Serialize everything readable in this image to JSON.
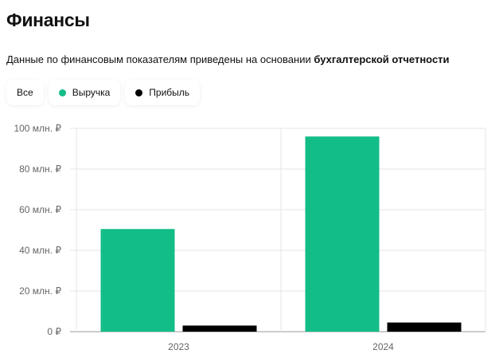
{
  "header": {
    "title": "Финансы",
    "subtitle_prefix": "Данные по финансовым показателям приведены на основании ",
    "subtitle_bold": "бухгалтерской отчетности"
  },
  "filters": [
    {
      "label": "Все",
      "dot_color": ""
    },
    {
      "label": "Выручка",
      "dot_color": "#13bd87"
    },
    {
      "label": "Прибыль",
      "dot_color": "#000000"
    }
  ],
  "chart_data": {
    "type": "bar",
    "categories": [
      "2023",
      "2024"
    ],
    "series": [
      {
        "name": "Выручка",
        "color": "#13bd87",
        "values": [
          50.5,
          96
        ]
      },
      {
        "name": "Прибыль",
        "color": "#000000",
        "values": [
          3,
          4.5
        ]
      }
    ],
    "y_ticks": [
      0,
      20,
      40,
      60,
      80,
      100
    ],
    "y_tick_labels": [
      "0 ₽",
      "20 млн. ₽",
      "40 млн. ₽",
      "60 млн. ₽",
      "80 млн. ₽",
      "100 млн. ₽"
    ],
    "ylim": [
      0,
      100
    ],
    "grid": true,
    "legend": "top-left"
  }
}
